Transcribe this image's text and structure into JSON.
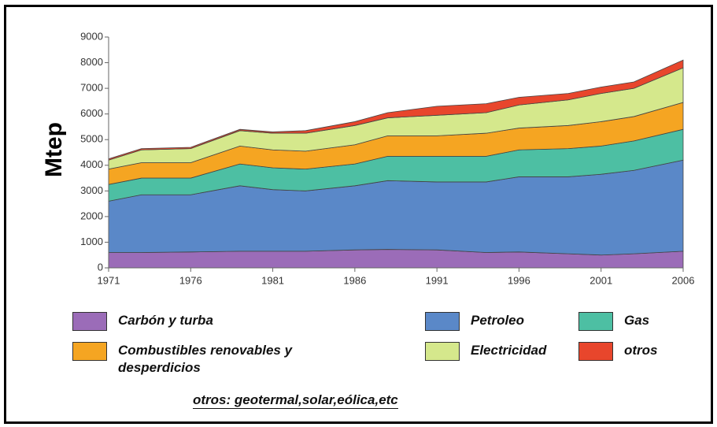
{
  "chart_data": {
    "type": "stacked_area",
    "ylabel": "Mtep",
    "x": [
      1971,
      1973,
      1976,
      1979,
      1981,
      1983,
      1986,
      1988,
      1991,
      1994,
      1996,
      1999,
      2001,
      2003,
      2006
    ],
    "series": [
      {
        "name": "Carbón y turba",
        "color": "#9b6cb8",
        "values": [
          600,
          600,
          620,
          650,
          650,
          650,
          700,
          720,
          700,
          600,
          620,
          550,
          500,
          550,
          650
        ]
      },
      {
        "name": "Petroleo",
        "color": "#5a88c8",
        "values": [
          2000,
          2250,
          2230,
          2550,
          2400,
          2350,
          2500,
          2680,
          2650,
          2750,
          2930,
          3000,
          3150,
          3250,
          3550
        ]
      },
      {
        "name": "Gas",
        "color": "#4dbfa3",
        "values": [
          650,
          650,
          650,
          850,
          850,
          850,
          850,
          950,
          1000,
          1000,
          1050,
          1100,
          1100,
          1150,
          1200
        ]
      },
      {
        "name": "Combustibles renovables y desperdicios",
        "color": "#f5a522",
        "values": [
          600,
          600,
          600,
          700,
          700,
          700,
          750,
          800,
          800,
          900,
          850,
          900,
          950,
          950,
          1050
        ]
      },
      {
        "name": "Electricidad",
        "color": "#d5e88c",
        "values": [
          350,
          500,
          550,
          600,
          650,
          700,
          750,
          700,
          800,
          800,
          900,
          1000,
          1100,
          1100,
          1350
        ]
      },
      {
        "name": "otros",
        "color": "#e8462c",
        "values": [
          50,
          50,
          50,
          50,
          50,
          100,
          150,
          200,
          350,
          350,
          300,
          250,
          250,
          250,
          300
        ]
      }
    ],
    "xlim": [
      1971,
      2006
    ],
    "xticks": [
      1971,
      1976,
      1981,
      1986,
      1991,
      1996,
      2001,
      2006
    ],
    "ylim": [
      0,
      9000
    ],
    "yticks": [
      0,
      1000,
      2000,
      3000,
      4000,
      5000,
      6000,
      7000,
      8000,
      9000
    ],
    "note": "otros: geotermal,solar,eólica,etc"
  }
}
